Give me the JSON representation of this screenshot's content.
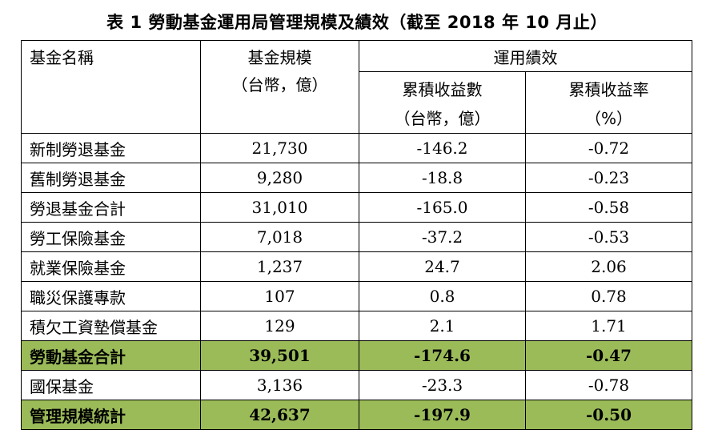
{
  "title": "表 1  勞動基金運用局管理規模及績效（截至 2018 年 10 月止）",
  "headers": {
    "name": "基金名稱",
    "size_line1": "基金規模",
    "size_line2": "（台幣，億）",
    "perf": "運用績效",
    "cum_amt_line1": "累積收益數",
    "cum_amt_line2": "（台幣，億）",
    "cum_rate_line1": "累積收益率",
    "cum_rate_line2": "（%）"
  },
  "rows": [
    {
      "name": "新制勞退基金",
      "size": "21,730",
      "cum_amt": "-146.2",
      "cum_rate": "-0.72"
    },
    {
      "name": "舊制勞退基金",
      "size": "9,280",
      "cum_amt": "-18.8",
      "cum_rate": "-0.23"
    },
    {
      "name": "勞退基金合計",
      "size": "31,010",
      "cum_amt": "-165.0",
      "cum_rate": "-0.58"
    },
    {
      "name": "勞工保險基金",
      "size": "7,018",
      "cum_amt": "-37.2",
      "cum_rate": "-0.53"
    },
    {
      "name": "就業保險基金",
      "size": "1,237",
      "cum_amt": "24.7",
      "cum_rate": "2.06"
    },
    {
      "name": "職災保護專款",
      "size": "107",
      "cum_amt": "0.8",
      "cum_rate": "0.78"
    },
    {
      "name": "積欠工資墊償基金",
      "size": "129",
      "cum_amt": "2.1",
      "cum_rate": "1.71"
    },
    {
      "name": "勞動基金合計",
      "size": "39,501",
      "cum_amt": "-174.6",
      "cum_rate": "-0.47"
    },
    {
      "name": "國保基金",
      "size": "3,136",
      "cum_amt": "-23.3",
      "cum_rate": "-0.78"
    },
    {
      "name": "管理規模統計",
      "size": "42,637",
      "cum_amt": "-197.9",
      "cum_rate": "-0.50"
    }
  ],
  "colors": {
    "highlight_row": "#9bbb59"
  }
}
